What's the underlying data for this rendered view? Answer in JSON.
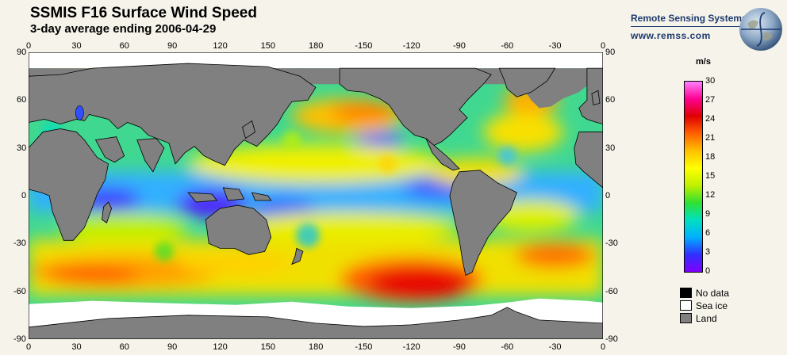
{
  "header": {
    "title": "SSMIS F16 Surface Wind Speed",
    "subtitle": "3-day average ending 2006-04-29"
  },
  "brand": {
    "name": "Remote Sensing Systems",
    "url": "www.remss.com"
  },
  "axes": {
    "lon_ticks": [
      "0",
      "30",
      "60",
      "90",
      "120",
      "150",
      "180",
      "-150",
      "-120",
      "-90",
      "-60",
      "-30",
      "0"
    ],
    "lat_ticks": [
      "90",
      "60",
      "30",
      "0",
      "-30",
      "-60",
      "-90"
    ]
  },
  "colorbar": {
    "unit": "m/s",
    "labels": [
      "30",
      "27",
      "24",
      "21",
      "18",
      "15",
      "12",
      "9",
      "6",
      "3",
      "0"
    ],
    "min": 0,
    "max": 30,
    "stops": [
      "#8000ff",
      "#3030ff",
      "#00b0ff",
      "#00e0c0",
      "#30e030",
      "#c0f000",
      "#ffff00",
      "#ffc000",
      "#ff6000",
      "#e00000",
      "#ff0090",
      "#ff80ff"
    ]
  },
  "legend": [
    {
      "label": "No data",
      "color": "#000000"
    },
    {
      "label": "Sea ice",
      "color": "#ffffff"
    },
    {
      "label": "Land",
      "color": "#808080"
    }
  ],
  "map": {
    "land_color": "#808080",
    "ice_color": "#ffffff"
  }
}
